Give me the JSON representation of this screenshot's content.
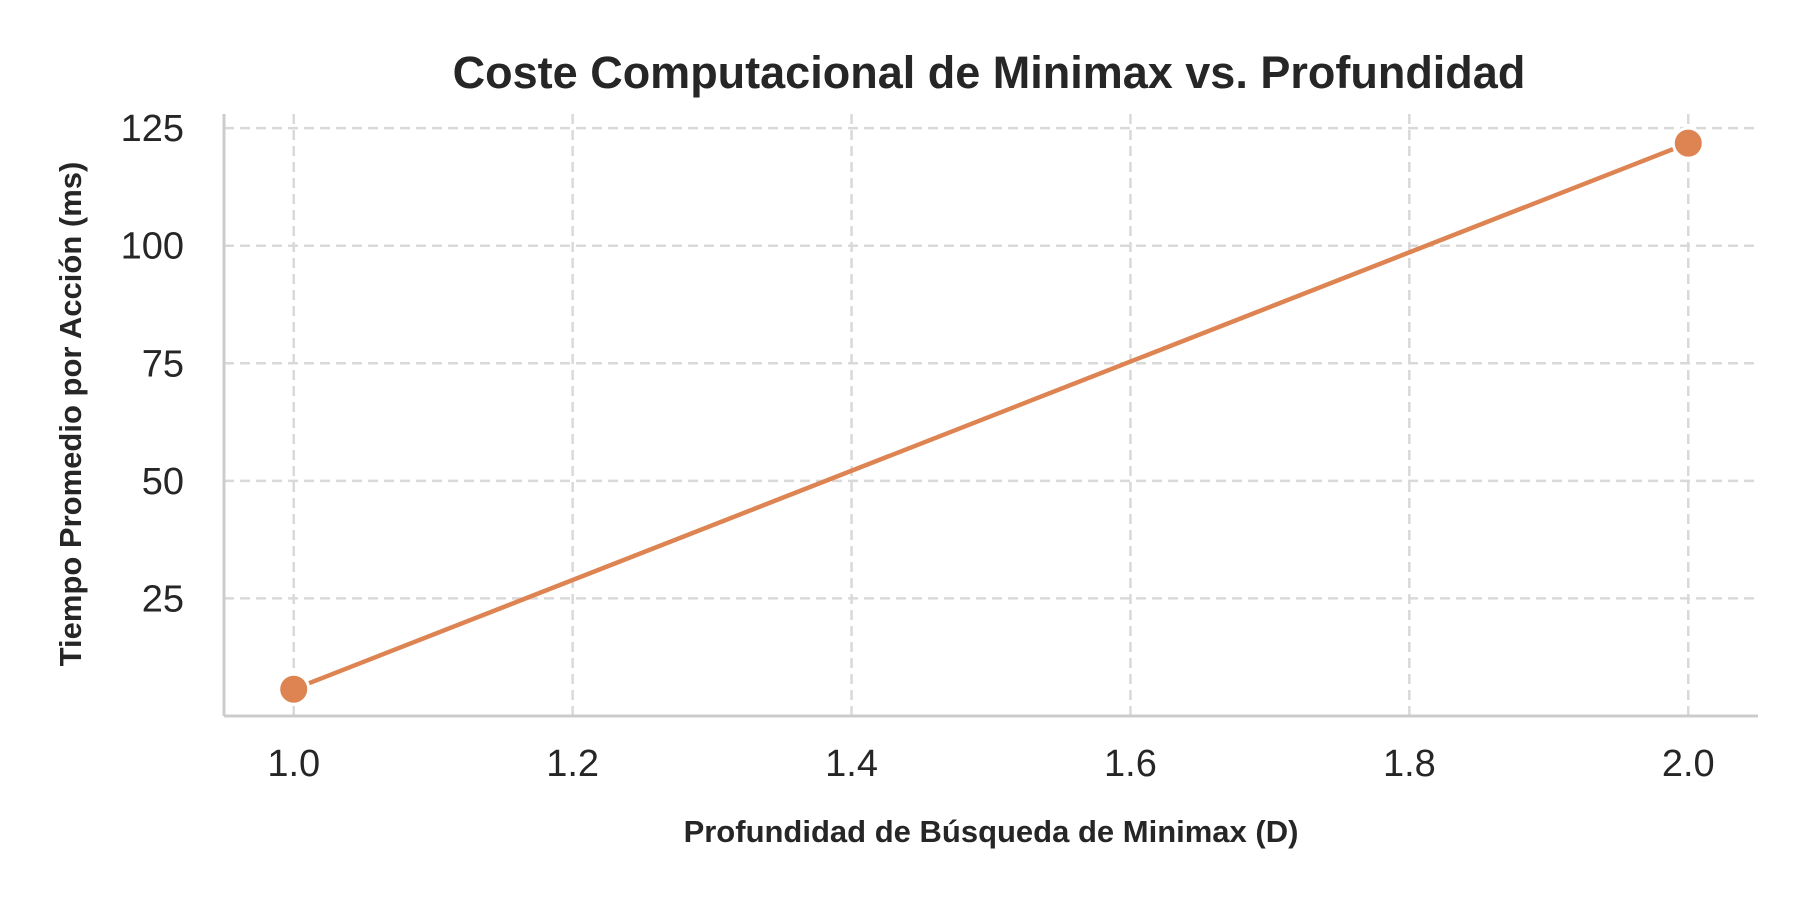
{
  "chart_data": {
    "type": "line",
    "title": "Coste Computacional de Minimax vs. Profundidad",
    "xlabel": "Profundidad de Búsqueda de Minimax (D)",
    "ylabel": "Tiempo Promedio por Acción (ms)",
    "xlim": [
      0.95,
      2.05
    ],
    "ylim": [
      0,
      128
    ],
    "x_ticks": [
      1.0,
      1.2,
      1.4,
      1.6,
      1.8,
      2.0
    ],
    "x_tick_labels": [
      "1.0",
      "1.2",
      "1.4",
      "1.6",
      "1.8",
      "2.0"
    ],
    "y_ticks": [
      25,
      50,
      75,
      100,
      125
    ],
    "y_tick_labels": [
      "25",
      "50",
      "75",
      "100",
      "125"
    ],
    "grid": true,
    "series": [
      {
        "color": "#dd8452",
        "marker": "circle",
        "points": [
          {
            "x": 1.0,
            "y": 5.7
          },
          {
            "x": 2.0,
            "y": 121.8
          }
        ]
      }
    ]
  }
}
